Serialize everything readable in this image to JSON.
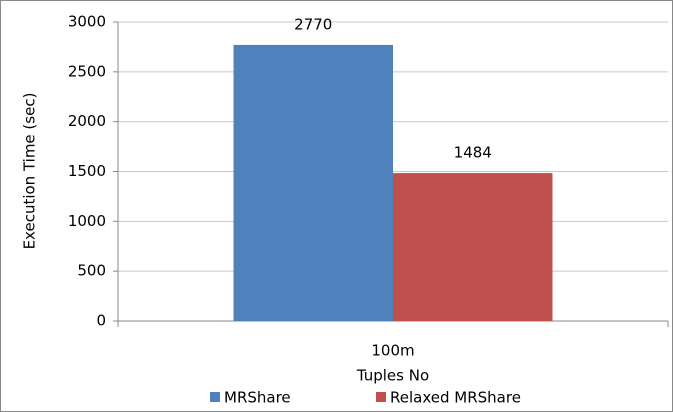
{
  "chart_data": {
    "type": "bar",
    "categories": [
      "100m"
    ],
    "series": [
      {
        "name": "MRShare",
        "color": "#4f81bd",
        "values": [
          2770
        ]
      },
      {
        "name": "Relaxed MRShare",
        "color": "#c0504d",
        "values": [
          1484
        ]
      }
    ],
    "ylabel": "Execution Time (sec)",
    "xlabel": "Tuples No",
    "ylim": [
      0,
      3000
    ],
    "yticks": [
      0,
      500,
      1000,
      1500,
      2000,
      2500,
      3000
    ],
    "grid": true,
    "legend": "bottom"
  }
}
